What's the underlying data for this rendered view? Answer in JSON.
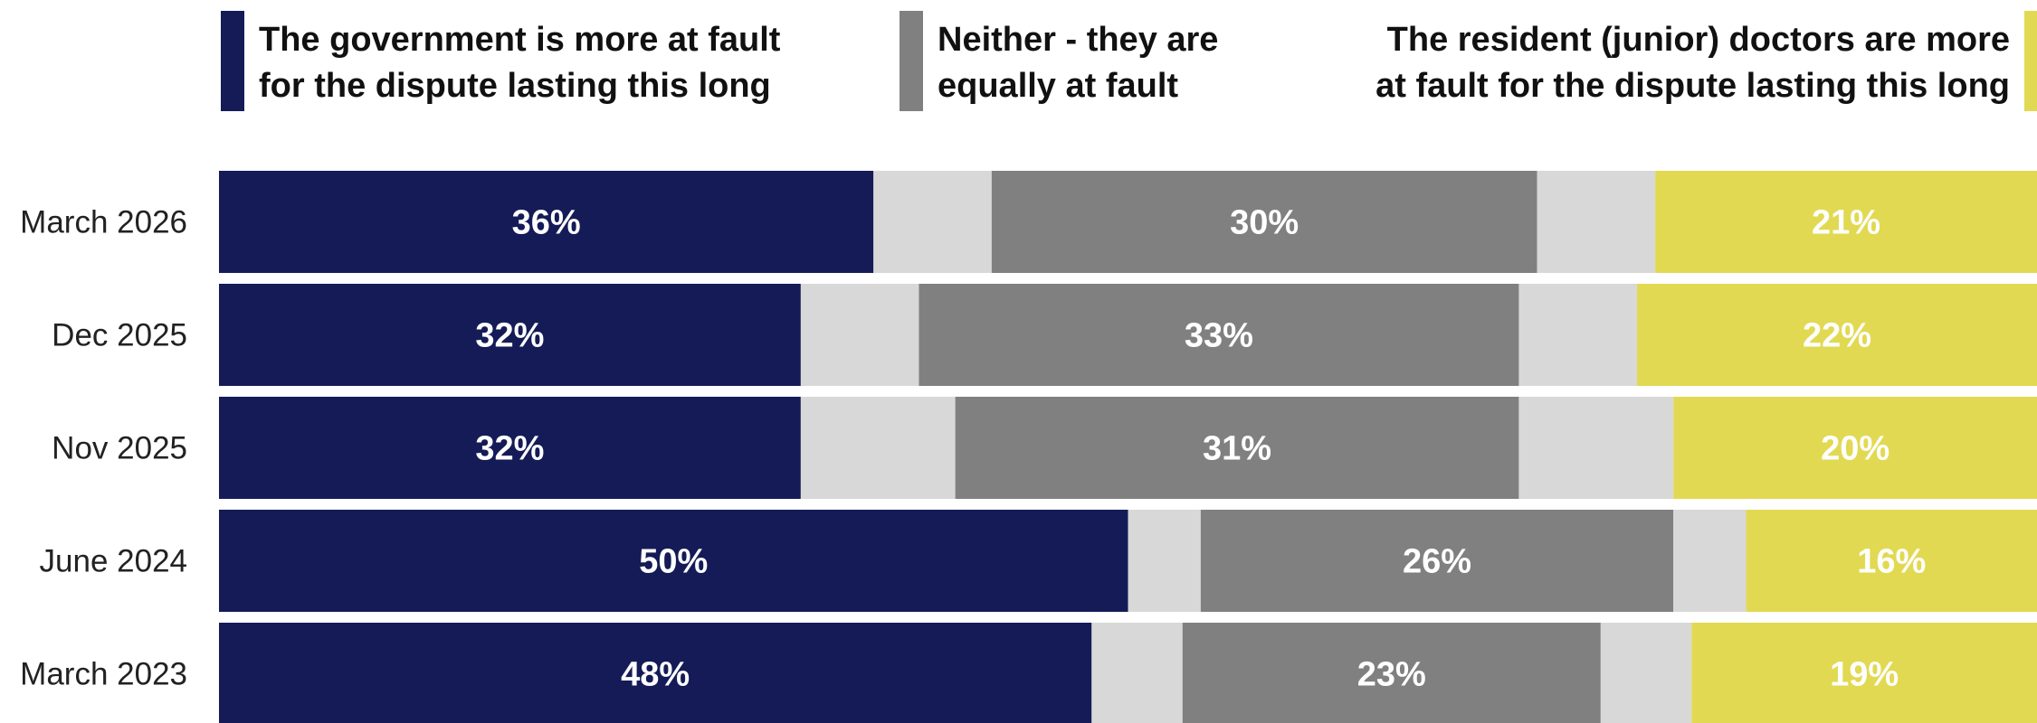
{
  "chart_data": {
    "type": "bar",
    "orientation": "horizontal",
    "stacked": true,
    "legend_position": "top",
    "categories": [
      "March 2026",
      "Dec 2025",
      "Nov 2025",
      "June 2024",
      "March 2023"
    ],
    "series": [
      {
        "name": "The government is more at fault for the dispute lasting this long",
        "name_lines": [
          "The government is more at fault",
          "for the dispute lasting this long"
        ],
        "color": "#141b57",
        "values": [
          36,
          32,
          32,
          50,
          48
        ],
        "show_labels": true
      },
      {
        "name": "",
        "color": "#d8d8d8",
        "values": [
          6.5,
          6.5,
          8.5,
          4,
          5
        ],
        "show_labels": false
      },
      {
        "name": "Neither - they are equally at fault",
        "name_lines": [
          "Neither - they are",
          "equally at fault"
        ],
        "color": "#808080",
        "values": [
          30,
          33,
          31,
          26,
          23
        ],
        "show_labels": true
      },
      {
        "name": "",
        "color": "#d8d8d8",
        "values": [
          6.5,
          6.5,
          8.5,
          4,
          5
        ],
        "show_labels": false
      },
      {
        "name": "The resident (junior) doctors are more at fault for the dispute lasting this long",
        "name_lines": [
          "The resident (junior) doctors are more",
          "at fault for the dispute lasting this long"
        ],
        "color": "#e2d952",
        "values": [
          21,
          22,
          20,
          16,
          19
        ],
        "show_labels": true
      }
    ],
    "value_suffix": "%",
    "xlim": [
      0,
      100
    ],
    "grid": false,
    "title": "",
    "xlabel": "",
    "ylabel": ""
  }
}
